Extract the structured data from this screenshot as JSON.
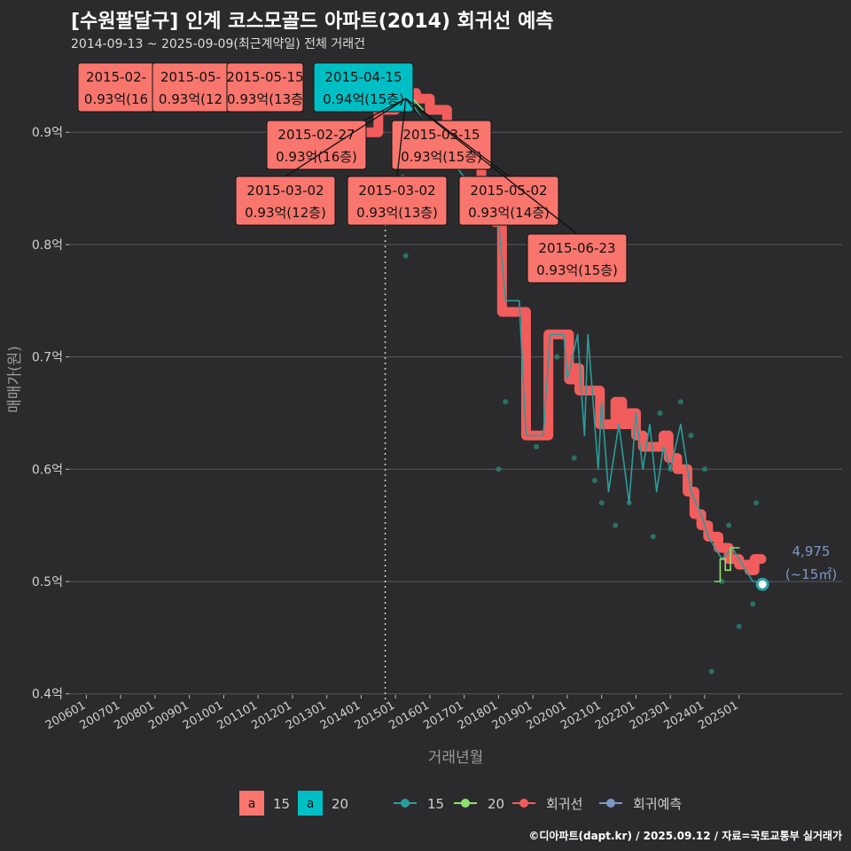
{
  "chart_data": {
    "type": "line",
    "title": "[수원팔달구] 인계 코스모골드 아파트(2014) 회귀선 예측",
    "subtitle": "2014-09-13 ~ 2025-09-09(최근계약일) 전체 거래건",
    "xlabel": "거래년월",
    "ylabel": "매매가(원)",
    "ylim": [
      0.4,
      0.95
    ],
    "y_ticks": [
      {
        "value": 0.4,
        "label": "0.4억"
      },
      {
        "value": 0.5,
        "label": "0.5억"
      },
      {
        "value": 0.6,
        "label": "0.6억"
      },
      {
        "value": 0.7,
        "label": "0.7억"
      },
      {
        "value": 0.8,
        "label": "0.8억"
      },
      {
        "value": 0.9,
        "label": "0.9억"
      }
    ],
    "x_ticks": [
      "200601",
      "200701",
      "200801",
      "200901",
      "201001",
      "201101",
      "201201",
      "201301",
      "201401",
      "201501",
      "201601",
      "201701",
      "201801",
      "201901",
      "202001",
      "202101",
      "202201",
      "202301",
      "202401",
      "202501"
    ],
    "x_range": [
      2005.5,
      2028.0
    ],
    "reference_line_x": 2014.7,
    "colors": {
      "s15": "#2a9d9b",
      "s20": "#90e070",
      "regression": "#f15d5d",
      "forecast": "#7f98c8",
      "point": "#2a8a78",
      "label_red": "#f8766d",
      "label_cyan": "#00bfc4",
      "background": "#2b2b2d",
      "grid": "#5a5a5c"
    },
    "series": [
      {
        "name": "15",
        "points": [
          [
            2015.05,
            0.93
          ],
          [
            2015.1,
            0.93
          ],
          [
            2015.2,
            0.93
          ],
          [
            2015.25,
            0.94
          ],
          [
            2015.4,
            0.93
          ],
          [
            2015.5,
            0.93
          ],
          [
            2015.6,
            0.92
          ],
          [
            2016.0,
            0.9
          ],
          [
            2016.5,
            0.88
          ],
          [
            2017.0,
            0.86
          ],
          [
            2017.5,
            0.84
          ],
          [
            2018.0,
            0.82
          ],
          [
            2018.2,
            0.75
          ],
          [
            2018.6,
            0.75
          ],
          [
            2018.8,
            0.63
          ],
          [
            2019.3,
            0.63
          ],
          [
            2019.5,
            0.72
          ],
          [
            2019.9,
            0.72
          ],
          [
            2020.0,
            0.68
          ],
          [
            2020.3,
            0.72
          ],
          [
            2020.5,
            0.63
          ],
          [
            2020.6,
            0.72
          ],
          [
            2020.9,
            0.6
          ],
          [
            2021.0,
            0.66
          ],
          [
            2021.2,
            0.58
          ],
          [
            2021.5,
            0.64
          ],
          [
            2021.8,
            0.57
          ],
          [
            2022.0,
            0.65
          ],
          [
            2022.2,
            0.6
          ],
          [
            2022.4,
            0.64
          ],
          [
            2022.6,
            0.58
          ],
          [
            2022.8,
            0.62
          ],
          [
            2023.0,
            0.6
          ],
          [
            2023.3,
            0.64
          ],
          [
            2023.6,
            0.58
          ],
          [
            2023.9,
            0.56
          ],
          [
            2024.1,
            0.54
          ],
          [
            2024.3,
            0.53
          ],
          [
            2024.5,
            0.52
          ],
          [
            2024.8,
            0.53
          ],
          [
            2025.0,
            0.52
          ],
          [
            2025.2,
            0.51
          ],
          [
            2025.4,
            0.5
          ],
          [
            2025.65,
            0.5
          ]
        ]
      },
      {
        "name": "20",
        "points": [
          [
            2015.3,
            0.94
          ],
          [
            2015.5,
            0.93
          ],
          [
            2015.8,
            0.92
          ],
          [
            2024.3,
            0.5
          ],
          [
            2024.45,
            0.52
          ],
          [
            2024.6,
            0.51
          ],
          [
            2024.75,
            0.53
          ],
          [
            2025.0,
            0.53
          ]
        ]
      },
      {
        "name": "회귀선",
        "points": [
          [
            2013.5,
            0.88
          ],
          [
            2014.0,
            0.9
          ],
          [
            2014.5,
            0.92
          ],
          [
            2015.0,
            0.93
          ],
          [
            2015.3,
            0.935
          ],
          [
            2015.6,
            0.93
          ],
          [
            2016.0,
            0.92
          ],
          [
            2016.5,
            0.9
          ],
          [
            2017.0,
            0.88
          ],
          [
            2017.5,
            0.85
          ],
          [
            2017.9,
            0.82
          ],
          [
            2018.1,
            0.74
          ],
          [
            2018.7,
            0.74
          ],
          [
            2018.8,
            0.63
          ],
          [
            2019.3,
            0.63
          ],
          [
            2019.45,
            0.72
          ],
          [
            2019.95,
            0.72
          ],
          [
            2020.05,
            0.68
          ],
          [
            2020.2,
            0.69
          ],
          [
            2020.35,
            0.67
          ],
          [
            2020.8,
            0.67
          ],
          [
            2020.95,
            0.64
          ],
          [
            2021.3,
            0.64
          ],
          [
            2021.4,
            0.66
          ],
          [
            2021.6,
            0.64
          ],
          [
            2021.8,
            0.65
          ],
          [
            2022.0,
            0.63
          ],
          [
            2022.2,
            0.62
          ],
          [
            2022.6,
            0.62
          ],
          [
            2022.8,
            0.63
          ],
          [
            2022.95,
            0.61
          ],
          [
            2023.2,
            0.6
          ],
          [
            2023.5,
            0.58
          ],
          [
            2023.7,
            0.56
          ],
          [
            2023.9,
            0.55
          ],
          [
            2024.1,
            0.54
          ],
          [
            2024.4,
            0.53
          ],
          [
            2024.7,
            0.52
          ],
          [
            2025.0,
            0.515
          ],
          [
            2025.3,
            0.51
          ],
          [
            2025.45,
            0.52
          ],
          [
            2025.65,
            0.52
          ]
        ]
      },
      {
        "name": "회귀예측",
        "points": [
          [
            2025.68,
            0.4975
          ]
        ]
      }
    ],
    "scatter": [
      [
        2014.75,
        0.93
      ],
      [
        2015.1,
        0.88
      ],
      [
        2015.2,
        0.86
      ],
      [
        2015.3,
        0.79
      ],
      [
        2015.15,
        0.87
      ],
      [
        2016.7,
        0.9
      ],
      [
        2017.3,
        0.87
      ],
      [
        2018.0,
        0.6
      ],
      [
        2018.2,
        0.66
      ],
      [
        2019.1,
        0.62
      ],
      [
        2019.7,
        0.7
      ],
      [
        2020.2,
        0.61
      ],
      [
        2020.8,
        0.59
      ],
      [
        2021.0,
        0.57
      ],
      [
        2021.4,
        0.55
      ],
      [
        2021.8,
        0.57
      ],
      [
        2022.2,
        0.63
      ],
      [
        2022.5,
        0.54
      ],
      [
        2022.7,
        0.65
      ],
      [
        2023.0,
        0.6
      ],
      [
        2023.3,
        0.66
      ],
      [
        2023.6,
        0.63
      ],
      [
        2024.0,
        0.6
      ],
      [
        2024.2,
        0.42
      ],
      [
        2024.5,
        0.5
      ],
      [
        2024.7,
        0.55
      ],
      [
        2025.0,
        0.46
      ],
      [
        2025.4,
        0.48
      ],
      [
        2025.5,
        0.57
      ]
    ],
    "annotations": [
      {
        "date": "2015-02-",
        "value": "0.93억(16",
        "color": "red",
        "x": 2015.1,
        "y": 0.93
      },
      {
        "date": "2015-05-",
        "value": "0.93억(12",
        "color": "red",
        "x": 2015.35,
        "y": 0.93
      },
      {
        "date": "2015-05-15",
        "value": "0.93억(13층",
        "color": "red",
        "x": 2015.37,
        "y": 0.93
      },
      {
        "date": "2015-04-15",
        "value": "0.94억(15층)",
        "color": "cyan",
        "x": 2015.28,
        "y": 0.94
      },
      {
        "date": "2015-02-27",
        "value": "0.93억(16층)",
        "color": "red",
        "x": 2015.15,
        "y": 0.93
      },
      {
        "date": "2015-03-15",
        "value": "0.93억(15층)",
        "color": "red",
        "x": 2015.2,
        "y": 0.93
      },
      {
        "date": "2015-03-02",
        "value": "0.93억(12층)",
        "color": "red",
        "x": 2015.17,
        "y": 0.93
      },
      {
        "date": "2015-03-02",
        "value": "0.93억(13층)",
        "color": "red",
        "x": 2015.17,
        "y": 0.93
      },
      {
        "date": "2015-05-02",
        "value": "0.93억(14층)",
        "color": "red",
        "x": 2015.33,
        "y": 0.93
      },
      {
        "date": "2015-06-23",
        "value": "0.93억(15층)",
        "color": "red",
        "x": 2015.48,
        "y": 0.93
      }
    ],
    "forecast_label": {
      "value": "4,975",
      "area": "(~15㎡)"
    },
    "legend": {
      "placement": "bottom",
      "key_glyph": "a",
      "label_items": [
        {
          "name": "15",
          "color": "#f8766d"
        },
        {
          "name": "20",
          "color": "#00bfc4"
        }
      ],
      "line_items": [
        {
          "name": "15",
          "color": "#2a9d9b"
        },
        {
          "name": "20",
          "color": "#90e070"
        },
        {
          "name": "회귀선",
          "color": "#f15d5d"
        },
        {
          "name": "회귀예측",
          "color": "#7f98c8"
        }
      ]
    },
    "caption": "©디아파트(dapt.kr) / 2025.09.12 / 자료=국토교통부 실거래가"
  }
}
